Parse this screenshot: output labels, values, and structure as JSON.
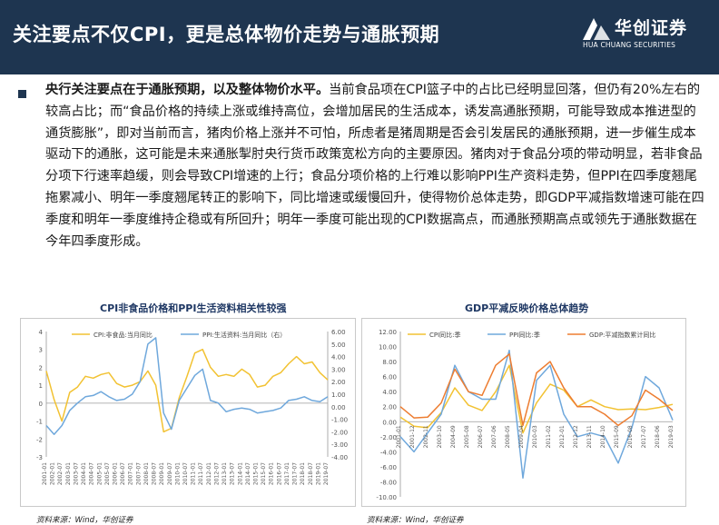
{
  "header": {
    "title": "关注要点不仅CPI，更是总体物价走势与通胀预期",
    "logo_main": "华创证券",
    "logo_sub": "HUA CHUANG SECURITIES",
    "bg_color": "#1e3550"
  },
  "body": {
    "lead": "央行关注要点在于通胀预期，以及整体物价水平。",
    "text": "当前食品项在CPI篮子中的占比已经明显回落，但仍有20%左右的较高占比；而“食品价格的持续上涨或维持高位，会增加居民的生活成本，诱发高通胀预期，可能导致成本推进型的通货膨胀”，即对当前而言，猪肉价格上涨并不可怕，所虑者是猪周期是否会引发居民的通胀预期，进一步催生成本驱动下的通胀，这可能是未来通胀掣肘央行货币政策宽松方向的主要原因。猪肉对于食品分项的带动明显，若非食品分项下行速率趋缓，则会导致CPI增速的上行；食品分项价格的上行难以影响PPI生产资料走势，但PPI在四季度翘尾拖累减小、明年一季度翘尾转正的影响下，同比增速或缓慢回升，使得物价总体走势，即GDP平减指数增速可能在四季度和明年一季度维持企稳或有所回升；明年一季度可能出现的CPI数据高点，而通胀预期高点或领先于通胀数据在今年四季度形成。"
  },
  "charts": {
    "left_title": "CPI非食品价格和PPI生活资料相关性较强",
    "right_title": "GDP平减反映价格总体趋势",
    "left_source": "资料来源：Wind，华创证券",
    "right_source": "资料来源：Wind，华创证券"
  },
  "chart_data": [
    {
      "type": "line",
      "title": "CPI非食品价格和PPI生活资料相关性较强",
      "x": [
        "2001-01",
        "2002-01",
        "2002-07",
        "2003-01",
        "2003-07",
        "2004-01",
        "2004-07",
        "2005-01",
        "2005-07",
        "2006-01",
        "2006-07",
        "2007-01",
        "2007-07",
        "2008-01",
        "2008-07",
        "2009-01",
        "2009-07",
        "2010-01",
        "2010-07",
        "2011-01",
        "2011-07",
        "2012-01",
        "2012-07",
        "2013-01",
        "2013-07",
        "2014-01",
        "2014-07",
        "2015-01",
        "2015-07",
        "2016-01",
        "2016-07",
        "2017-01",
        "2017-07",
        "2018-01",
        "2018-07",
        "2019-01",
        "2019-07"
      ],
      "x_ticks": [
        "2001-01",
        "2002-01",
        "2002-07",
        "2003-01",
        "2003-07",
        "2004-01",
        "2004-07",
        "2005-01",
        "2005-07",
        "2006-01",
        "2006-07",
        "2007-01",
        "2007-07",
        "2008-01",
        "2008-07",
        "2009-01",
        "2009-07",
        "2010-01",
        "2010-07",
        "2011-01",
        "2011-07",
        "2012-01",
        "2012-07",
        "2013-01",
        "2013-07",
        "2014-01",
        "2014-07",
        "2015-01",
        "2015-07",
        "2016-01",
        "2016-07",
        "2017-01",
        "2017-07",
        "2018-01",
        "2018-07",
        "2019-01",
        "2019-07"
      ],
      "y_left_ticks": [
        "4",
        "3",
        "2",
        "1",
        "0",
        "-1",
        "-2",
        "-3"
      ],
      "y_right_ticks": [
        "6.00",
        "5.00",
        "4.00",
        "3.00",
        "2.00",
        "1.00",
        "0.00",
        "-1.00",
        "-2.00",
        "-3.00",
        "-4.00"
      ],
      "ylim_left": [
        -3,
        4
      ],
      "ylim_right": [
        -4,
        6
      ],
      "series": [
        {
          "name": "CPI:非食品:当月同比",
          "axis": "left",
          "color": "#f2c232",
          "values": [
            1.8,
            0.2,
            -1.0,
            0.6,
            0.9,
            1.5,
            1.4,
            1.6,
            1.7,
            1.1,
            0.9,
            1.0,
            1.2,
            1.8,
            1.0,
            -1.6,
            -1.4,
            0.3,
            1.5,
            2.8,
            3.0,
            2.0,
            1.5,
            1.6,
            1.5,
            1.9,
            1.6,
            0.9,
            1.0,
            1.5,
            1.7,
            2.2,
            2.6,
            2.2,
            2.3,
            1.7,
            1.3
          ]
        },
        {
          "name": "PPI:生活资料:当月同比（右）",
          "axis": "right",
          "color": "#6fa8dc",
          "values": [
            -1.5,
            -2.2,
            -1.5,
            -0.3,
            0.3,
            0.8,
            0.9,
            1.2,
            0.8,
            0.5,
            0.6,
            1.0,
            2.0,
            5.0,
            5.5,
            -0.5,
            -1.8,
            0.5,
            1.5,
            2.5,
            3.0,
            0.5,
            0.3,
            -0.4,
            -0.2,
            -0.1,
            -0.2,
            -0.5,
            -0.4,
            -0.3,
            -0.1,
            0.5,
            0.6,
            0.8,
            0.5,
            0.4,
            0.8
          ]
        }
      ]
    },
    {
      "type": "line",
      "title": "GDP平减反映价格总体趋势",
      "x": [
        "2001-01",
        "2001-12",
        "2002-11",
        "2003-10",
        "2004-09",
        "2005-08",
        "2006-07",
        "2007-06",
        "2008-05",
        "2009-04",
        "2010-03",
        "2011-02",
        "2012-01",
        "2012-12",
        "2013-11",
        "2014-10",
        "2015-09",
        "2016-08",
        "2017-07",
        "2018-06",
        "2019-03"
      ],
      "x_ticks": [
        "2001-01",
        "2001-12",
        "2002-11",
        "2003-10",
        "2004-09",
        "2005-08",
        "2006-07",
        "2007-06",
        "2008-05",
        "2009-04",
        "2010-03",
        "2011-02",
        "2012-01",
        "2012-12",
        "2013-11",
        "2014-10",
        "2015-09",
        "2016-08",
        "2017-07",
        "2018-06",
        "2019-03"
      ],
      "y_ticks": [
        "12.00",
        "10.00",
        "8.00",
        "6.00",
        "4.00",
        "2.00",
        "0.00",
        "-2.00",
        "-4.00",
        "-6.00",
        "-8.00",
        "-10.00"
      ],
      "ylim": [
        -10,
        12
      ],
      "series": [
        {
          "name": "CPI同比:季",
          "color": "#f2c232",
          "values": [
            0.6,
            -0.6,
            -0.8,
            1.2,
            4.5,
            2.2,
            1.5,
            4.0,
            7.5,
            -1.5,
            2.5,
            5.0,
            4.2,
            2.0,
            2.9,
            2.0,
            1.6,
            1.7,
            1.6,
            1.9,
            2.3
          ]
        },
        {
          "name": "PPI同比:季",
          "color": "#6fa8dc",
          "values": [
            -2.0,
            -4.0,
            -1.5,
            1.0,
            7.5,
            4.0,
            3.0,
            3.0,
            9.5,
            -7.5,
            5.5,
            7.5,
            1.0,
            -2.0,
            -1.5,
            -2.0,
            -5.5,
            -0.8,
            6.0,
            4.5,
            0.2
          ]
        },
        {
          "name": "GDP:平减指数累计同比",
          "color": "#ed7d31",
          "values": [
            2.0,
            0.5,
            0.6,
            2.5,
            7.0,
            4.0,
            3.5,
            7.5,
            9.0,
            -0.5,
            6.5,
            8.0,
            4.5,
            2.0,
            2.0,
            1.0,
            -0.5,
            0.8,
            4.2,
            3.0,
            1.5
          ]
        }
      ]
    }
  ]
}
